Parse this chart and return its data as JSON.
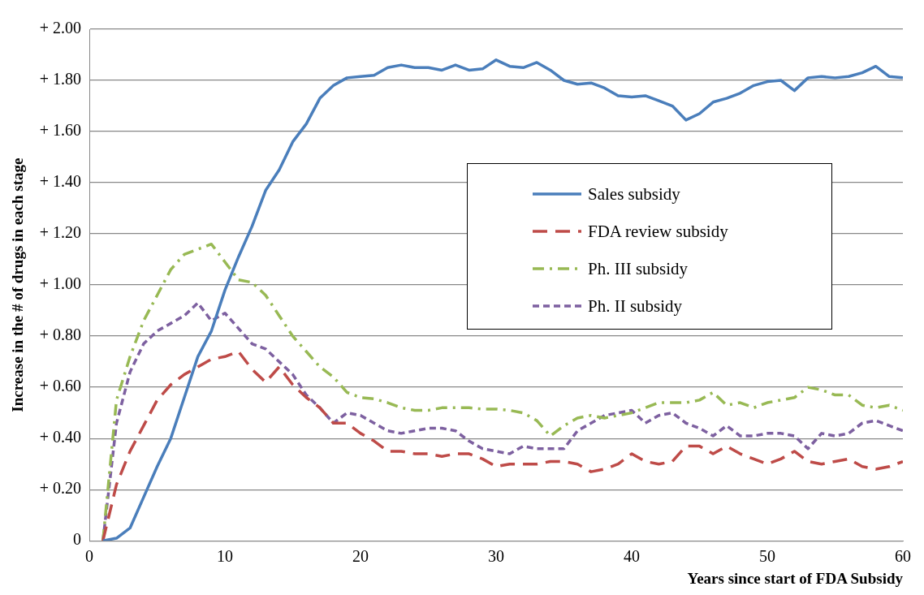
{
  "chart_data": {
    "type": "line",
    "xlabel": "Years since start of FDA Subsidy",
    "ylabel": "Increase in the # of drugs in each stage",
    "x": [
      1,
      2,
      3,
      4,
      5,
      6,
      7,
      8,
      9,
      10,
      11,
      12,
      13,
      14,
      15,
      16,
      17,
      18,
      19,
      20,
      21,
      22,
      23,
      24,
      25,
      26,
      27,
      28,
      29,
      30,
      31,
      32,
      33,
      34,
      35,
      36,
      37,
      38,
      39,
      40,
      41,
      42,
      43,
      44,
      45,
      46,
      47,
      48,
      49,
      50,
      51,
      52,
      53,
      54,
      55,
      56,
      57,
      58,
      59,
      60
    ],
    "xlim": [
      0,
      60
    ],
    "xticks": [
      0,
      10,
      20,
      30,
      40,
      50,
      60
    ],
    "ylim": [
      0,
      2
    ],
    "yticks": [
      {
        "value": 0,
        "label": "0"
      },
      {
        "value": 0.2,
        "label": "+ 0.20"
      },
      {
        "value": 0.4,
        "label": "+ 0.40"
      },
      {
        "value": 0.6,
        "label": "+ 0.60"
      },
      {
        "value": 0.8,
        "label": "+ 0.80"
      },
      {
        "value": 1,
        "label": "+ 1.00"
      },
      {
        "value": 1.2,
        "label": "+ 1.20"
      },
      {
        "value": 1.4,
        "label": "+ 1.40"
      },
      {
        "value": 1.6,
        "label": "+ 1.60"
      },
      {
        "value": 1.8,
        "label": "+ 1.80"
      },
      {
        "value": 2,
        "label": "+ 2.00"
      }
    ],
    "grid": "y",
    "legend": "right",
    "marker": "none",
    "series": [
      {
        "name": "Sales subsidy",
        "color": "#4a7ebb",
        "line_style": "solid",
        "values": [
          0,
          0.01,
          0.05,
          0.17,
          0.29,
          0.4,
          0.56,
          0.72,
          0.82,
          0.98,
          1.11,
          1.23,
          1.37,
          1.45,
          1.56,
          1.63,
          1.73,
          1.78,
          1.81,
          1.815,
          1.82,
          1.85,
          1.86,
          1.85,
          1.85,
          1.84,
          1.86,
          1.84,
          1.845,
          1.88,
          1.855,
          1.85,
          1.87,
          1.84,
          1.8,
          1.785,
          1.79,
          1.77,
          1.74,
          1.735,
          1.74,
          1.72,
          1.7,
          1.645,
          1.67,
          1.715,
          1.73,
          1.75,
          1.78,
          1.795,
          1.8,
          1.76,
          1.81,
          1.815,
          1.81,
          1.815,
          1.83,
          1.855,
          1.815,
          1.81
        ]
      },
      {
        "name": "FDA review subsidy",
        "color": "#be4b48",
        "line_style": "dashed",
        "values": [
          0,
          0.22,
          0.35,
          0.45,
          0.55,
          0.61,
          0.65,
          0.68,
          0.71,
          0.72,
          0.74,
          0.67,
          0.62,
          0.68,
          0.61,
          0.56,
          0.52,
          0.46,
          0.46,
          0.42,
          0.39,
          0.35,
          0.35,
          0.34,
          0.34,
          0.33,
          0.34,
          0.34,
          0.32,
          0.29,
          0.3,
          0.3,
          0.3,
          0.31,
          0.31,
          0.3,
          0.27,
          0.28,
          0.3,
          0.34,
          0.31,
          0.3,
          0.31,
          0.37,
          0.37,
          0.34,
          0.37,
          0.34,
          0.32,
          0.3,
          0.32,
          0.35,
          0.31,
          0.3,
          0.31,
          0.32,
          0.29,
          0.28,
          0.29,
          0.31
        ]
      },
      {
        "name": "Ph. III subsidy",
        "color": "#98b954",
        "line_style": "dashed",
        "values": [
          0,
          0.55,
          0.72,
          0.86,
          0.96,
          1.06,
          1.12,
          1.14,
          1.16,
          1.09,
          1.02,
          1.01,
          0.96,
          0.88,
          0.8,
          0.74,
          0.68,
          0.64,
          0.58,
          0.56,
          0.555,
          0.54,
          0.52,
          0.51,
          0.51,
          0.52,
          0.52,
          0.52,
          0.515,
          0.515,
          0.51,
          0.5,
          0.47,
          0.41,
          0.45,
          0.48,
          0.49,
          0.48,
          0.49,
          0.5,
          0.52,
          0.54,
          0.54,
          0.54,
          0.55,
          0.58,
          0.53,
          0.54,
          0.52,
          0.54,
          0.55,
          0.56,
          0.6,
          0.59,
          0.57,
          0.57,
          0.53,
          0.52,
          0.53,
          0.51
        ]
      },
      {
        "name": "Ph. II subsidy",
        "color": "#7d60a0",
        "line_style": "dashed",
        "values": [
          0,
          0.46,
          0.66,
          0.77,
          0.82,
          0.85,
          0.88,
          0.93,
          0.86,
          0.89,
          0.83,
          0.77,
          0.75,
          0.7,
          0.65,
          0.57,
          0.52,
          0.46,
          0.5,
          0.49,
          0.46,
          0.43,
          0.42,
          0.43,
          0.44,
          0.44,
          0.43,
          0.39,
          0.36,
          0.35,
          0.34,
          0.37,
          0.36,
          0.36,
          0.36,
          0.43,
          0.46,
          0.49,
          0.5,
          0.51,
          0.46,
          0.49,
          0.5,
          0.46,
          0.44,
          0.41,
          0.45,
          0.41,
          0.41,
          0.42,
          0.42,
          0.41,
          0.36,
          0.42,
          0.41,
          0.42,
          0.46,
          0.47,
          0.45,
          0.43
        ]
      }
    ]
  }
}
